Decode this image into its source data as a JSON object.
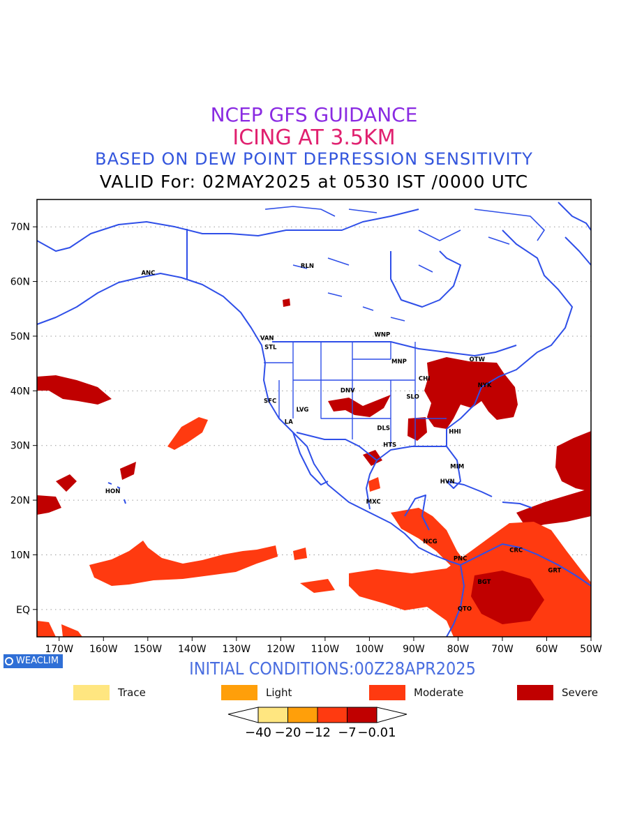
{
  "titles": {
    "line1": {
      "text": "NCEP GFS GUIDANCE",
      "color": "#8a2be2"
    },
    "line2": {
      "text": "ICING AT 3.5KM",
      "color": "#e0206f"
    },
    "line3": {
      "text": "BASED ON DEW POINT DEPRESSION SENSITIVITY",
      "color": "#3355dd"
    },
    "line4": {
      "text": "VALID For: 02MAY2025 at 0530 IST /0000 UTC"
    }
  },
  "map": {
    "lat_labels": [
      "70N",
      "60N",
      "50N",
      "40N",
      "30N",
      "20N",
      "10N",
      "EQ"
    ],
    "lon_labels": [
      "170W",
      "160W",
      "150W",
      "140W",
      "130W",
      "120W",
      "110W",
      "100W",
      "90W",
      "80W",
      "70W",
      "60W",
      "50W"
    ],
    "extent": {
      "lon": [
        -175,
        -50
      ],
      "lat": [
        -5,
        75
      ]
    },
    "coastline_color": "#2f4fe8",
    "cities": [
      {
        "name": "ANC",
        "lon": -149.9,
        "lat": 61.2
      },
      {
        "name": "RLN",
        "lon": -114,
        "lat": 62.5
      },
      {
        "name": "VAN",
        "lon": -123.1,
        "lat": 49.3
      },
      {
        "name": "STL",
        "lon": -122.3,
        "lat": 47.6
      },
      {
        "name": "WNP",
        "lon": -97.1,
        "lat": 49.9
      },
      {
        "name": "MNP",
        "lon": -93.3,
        "lat": 45
      },
      {
        "name": "OTW",
        "lon": -75.7,
        "lat": 45.4
      },
      {
        "name": "CHI",
        "lon": -87.6,
        "lat": 41.9
      },
      {
        "name": "NYK",
        "lon": -74,
        "lat": 40.7
      },
      {
        "name": "SFC",
        "lon": -122.4,
        "lat": 37.8
      },
      {
        "name": "DNV",
        "lon": -104.9,
        "lat": 39.7
      },
      {
        "name": "SLO",
        "lon": -90.2,
        "lat": 38.6
      },
      {
        "name": "LVG",
        "lon": -115.1,
        "lat": 36.2
      },
      {
        "name": "LA",
        "lon": -118.2,
        "lat": 34
      },
      {
        "name": "DLS",
        "lon": -96.8,
        "lat": 32.8
      },
      {
        "name": "HTS",
        "lon": -95.4,
        "lat": 29.8
      },
      {
        "name": "HHI",
        "lon": -80.7,
        "lat": 32.2
      },
      {
        "name": "MIM",
        "lon": -80.2,
        "lat": 25.8
      },
      {
        "name": "HVN",
        "lon": -82.4,
        "lat": 23.1
      },
      {
        "name": "HON",
        "lon": -157.9,
        "lat": 21.3
      },
      {
        "name": "MXC",
        "lon": -99.1,
        "lat": 19.4
      },
      {
        "name": "NCG",
        "lon": -86.3,
        "lat": 12.1
      },
      {
        "name": "PNC",
        "lon": -79.5,
        "lat": 9
      },
      {
        "name": "CRC",
        "lon": -66.9,
        "lat": 10.5
      },
      {
        "name": "GRT",
        "lon": -58.2,
        "lat": 6.8
      },
      {
        "name": "BGT",
        "lon": -74.1,
        "lat": 4.7
      },
      {
        "name": "QTO",
        "lon": -78.5,
        "lat": -0.2
      }
    ]
  },
  "badge": {
    "text": "WEACLIM"
  },
  "initial_conditions": {
    "text": "INITIAL CONDITIONS:00Z28APR2025",
    "color": "#4a6ee0"
  },
  "legend": [
    {
      "label": "Trace",
      "color": "#ffe680"
    },
    {
      "label": "Light",
      "color": "#ff9f0a"
    },
    {
      "label": "Moderate",
      "color": "#ff3a10"
    },
    {
      "label": "Severe",
      "color": "#c00000"
    }
  ],
  "colorbar": {
    "colors": [
      "#ffe680",
      "#ff9f0a",
      "#ff3a10",
      "#c00000"
    ],
    "tick_labels": [
      "−40",
      "−20",
      "−12",
      "−7",
      "−0.01"
    ]
  }
}
